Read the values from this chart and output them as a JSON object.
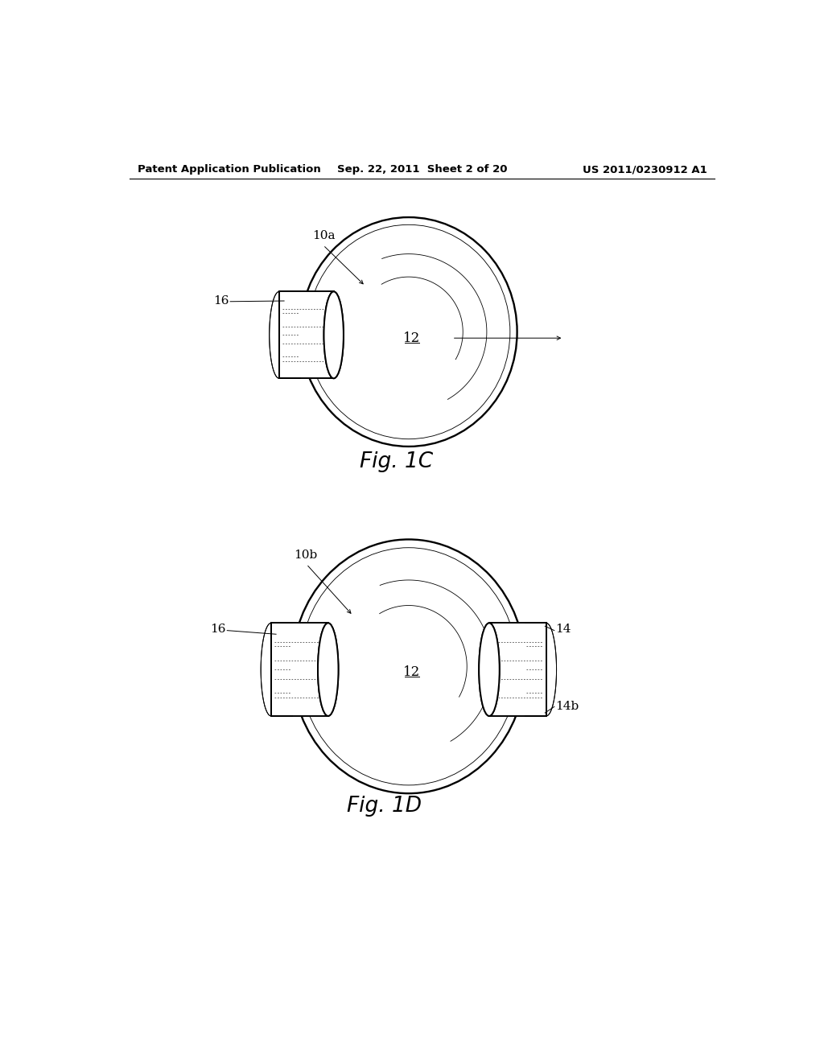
{
  "background_color": "#ffffff",
  "header_left": "Patent Application Publication",
  "header_center": "Sep. 22, 2011  Sheet 2 of 20",
  "header_right": "US 2011/0230912 A1",
  "fig_c_label": "Fig. 1C",
  "fig_d_label": "Fig. 1D",
  "label_10a": "10a",
  "label_10b": "10b",
  "label_12_c": "12",
  "label_12_d": "12",
  "label_16_c": "16",
  "label_16_d": "16",
  "label_14": "14",
  "label_14b": "14b",
  "line_color": "#000000",
  "line_width": 1.4,
  "lw_thin": 0.7
}
